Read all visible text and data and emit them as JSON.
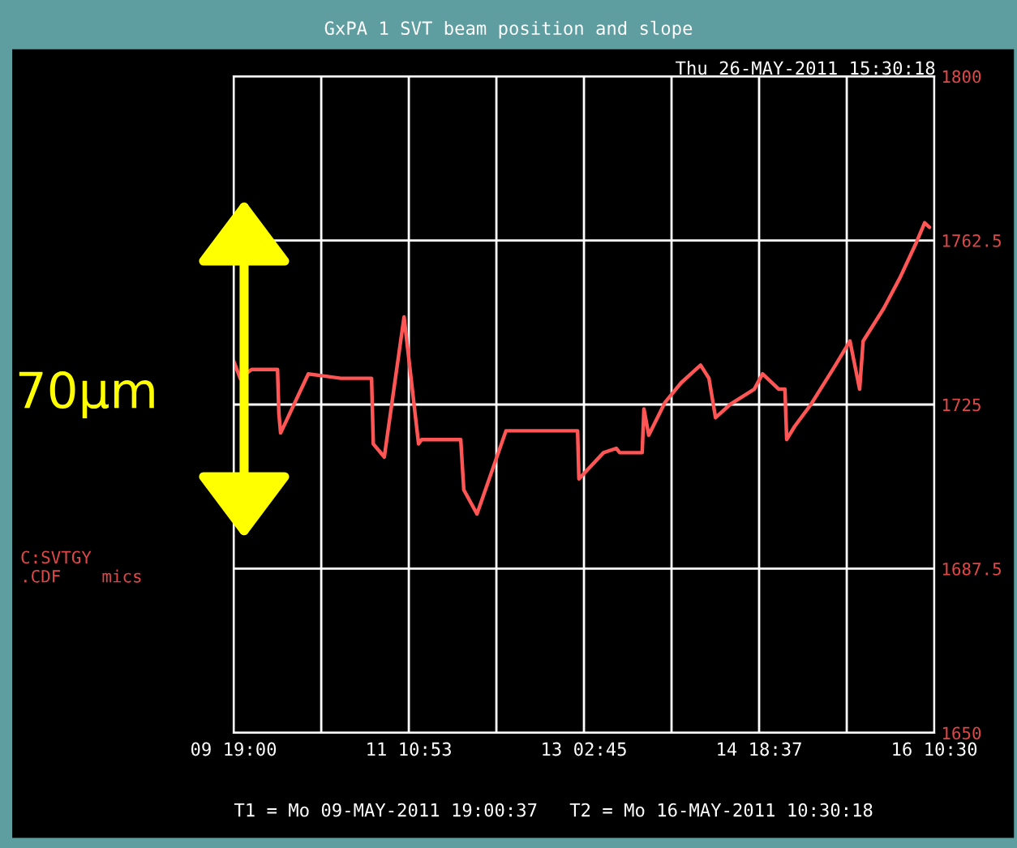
{
  "chart_data": {
    "type": "line",
    "title": "GxPA 1 SVT beam position and slope",
    "ylabel": "C:SVTGY\n.CDF    mics",
    "annotations": [
      "Thu 26-MAY-2011 15:30:18",
      "T1 = Mo 09-MAY-2011 19:00:37",
      "T2 = Mo 16-MAY-2011 10:30:18",
      "70μm"
    ],
    "series": [
      {
        "color": "#ff5555",
        "x": [
          "2011-05-09T19:00",
          "2011-05-09T20:30",
          "2011-05-09T23:06",
          "2011-05-10T02:48",
          "2011-05-10T05:00",
          "2011-05-10T05:18",
          "2011-05-10T05:42",
          "2011-05-10T12:00",
          "2011-05-10T15:42",
          "2011-05-10T19:24",
          "2011-05-11T02:24",
          "2011-05-11T02:48",
          "2011-05-11T05:18",
          "2011-05-11T09:48",
          "2011-05-11T13:06",
          "2011-05-11T13:48",
          "2011-05-11T22:42",
          "2011-05-11T23:24",
          "2011-05-12T02:24",
          "2011-05-12T09:00",
          "2011-05-13T01:18",
          "2011-05-13T01:36",
          "2011-05-13T07:12",
          "2011-05-13T10:06",
          "2011-05-13T10:54",
          "2011-05-13T16:00",
          "2011-05-13T16:24",
          "2011-05-13T17:30",
          "2011-05-13T21:12",
          "2011-05-14T00:54",
          "2011-05-14T05:18",
          "2011-05-14T07:12",
          "2011-05-14T08:42",
          "2011-05-14T12:00",
          "2011-05-14T17:30",
          "2011-05-14T19:24",
          "2011-05-14T23:06",
          "2011-05-15T00:30",
          "2011-05-15T00:54",
          "2011-05-15T02:42",
          "2011-05-15T06:24",
          "2011-05-15T12:00",
          "2011-05-15T15:18",
          "2011-05-15T17:30",
          "2011-05-15T18:18",
          "2011-05-15T23:00",
          "2011-05-16T02:42",
          "2011-05-16T06:24",
          "2011-05-16T08:18",
          "2011-05-16T09:24"
        ],
        "values": [
          1735,
          1731,
          1733,
          1733,
          1733,
          1723,
          1718.5,
          1732,
          1731.5,
          1731,
          1731,
          1716,
          1713,
          1745,
          1716,
          1717,
          1717,
          1705.5,
          1700,
          1719,
          1719,
          1708,
          1714,
          1715,
          1714,
          1714,
          1724,
          1718,
          1725.5,
          1730,
          1734,
          1731,
          1722,
          1725,
          1728.5,
          1732,
          1728.5,
          1728.5,
          1717,
          1720,
          1725,
          1734,
          1739.5,
          1728.5,
          1739.5,
          1747,
          1754,
          1762,
          1766.5,
          1765.5
        ]
      }
    ],
    "xlim": [
      "2011-05-09T19:00",
      "2011-05-16T10:30"
    ],
    "xticks": [
      {
        "value": "2011-05-09T19:00",
        "label": "09 19:00"
      },
      {
        "value": "2011-05-10T14:57",
        "label": null
      },
      {
        "value": "2011-05-11T10:53",
        "label": "11 10:53"
      },
      {
        "value": "2011-05-12T06:49",
        "label": null
      },
      {
        "value": "2011-05-13T02:45",
        "label": "13 02:45"
      },
      {
        "value": "2011-05-13T22:41",
        "label": null
      },
      {
        "value": "2011-05-14T18:37",
        "label": "14 18:37"
      },
      {
        "value": "2011-05-15T14:34",
        "label": null
      },
      {
        "value": "2011-05-16T10:30",
        "label": "16 10:30"
      }
    ],
    "ylim": [
      1650,
      1800
    ],
    "yticks": [
      1650,
      1687.5,
      1725,
      1762.5,
      1800
    ],
    "grid": true,
    "marker": "none",
    "line_style": "solid"
  }
}
